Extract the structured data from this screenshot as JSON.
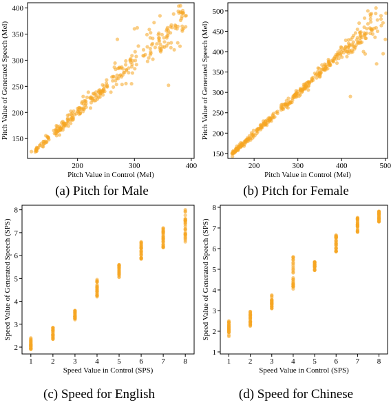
{
  "chart_data": [
    {
      "type": "scatter",
      "panel": "a",
      "caption": "(a) Pitch for Male",
      "xlabel": "Pitch Value in Control (Mel)",
      "ylabel": "Pitch Value of Generated Speech (Mel)",
      "xlim": [
        112,
        405
      ],
      "ylim": [
        112,
        410
      ],
      "xticks": [
        200,
        300,
        400
      ],
      "yticks": [
        150,
        200,
        250,
        300,
        350,
        400
      ],
      "color": "#f5a623",
      "seed": 11,
      "n_points": 300,
      "trend": {
        "x": [
          120,
          200,
          300,
          390
        ],
        "y": [
          122,
          202,
          300,
          385
        ]
      },
      "spread": {
        "x": [
          120,
          250,
          300,
          390
        ],
        "s": [
          3,
          8,
          14,
          25
        ]
      },
      "outliers": [
        [
          300,
          360
        ],
        [
          305,
          362
        ],
        [
          270,
          340
        ],
        [
          295,
          255
        ],
        [
          360,
          252
        ],
        [
          345,
          385
        ],
        [
          375,
          360
        ],
        [
          385,
          395
        ],
        [
          370,
          320
        ]
      ]
    },
    {
      "type": "scatter",
      "panel": "b",
      "caption": "(b) Pitch for Female",
      "xlabel": "Pitch Value in Control (Mel)",
      "ylabel": "Pitch Value of Generated Speech (Mel)",
      "xlim": [
        140,
        505
      ],
      "ylim": [
        138,
        520
      ],
      "xticks": [
        200,
        300,
        400,
        500
      ],
      "yticks": [
        150,
        200,
        250,
        300,
        350,
        400,
        450,
        500
      ],
      "color": "#f5a623",
      "seed": 23,
      "n_points": 380,
      "trend": {
        "x": [
          150,
          300,
          400,
          500
        ],
        "y": [
          150,
          297,
          398,
          478
        ]
      },
      "spread": {
        "x": [
          150,
          380,
          430,
          500
        ],
        "s": [
          3,
          6,
          14,
          24
        ]
      },
      "outliers": [
        [
          420,
          290
        ],
        [
          460,
          500
        ],
        [
          490,
          480
        ],
        [
          500,
          430
        ],
        [
          495,
          395
        ],
        [
          450,
          400
        ],
        [
          480,
          370
        ],
        [
          440,
          470
        ]
      ]
    },
    {
      "type": "scatter",
      "panel": "c",
      "caption": "(c) Speed for English",
      "xlabel": "Speed Value in Control (SPS)",
      "ylabel": "Speed Value of Generated Speech (SPS)",
      "xlim": [
        0.6,
        8.4
      ],
      "ylim": [
        1.7,
        8.2
      ],
      "xticks": [
        1,
        2,
        3,
        4,
        5,
        6,
        7,
        8
      ],
      "yticks": [
        2,
        3,
        4,
        5,
        6,
        7,
        8
      ],
      "color": "#f5a623",
      "seed": 37,
      "groups": [
        {
          "x": 1,
          "min": 1.9,
          "max": 2.4,
          "count": 24
        },
        {
          "x": 2,
          "min": 2.35,
          "max": 2.85,
          "count": 24
        },
        {
          "x": 3,
          "min": 3.2,
          "max": 3.6,
          "count": 24
        },
        {
          "x": 4,
          "min": 4.2,
          "max": 4.95,
          "count": 26
        },
        {
          "x": 5,
          "min": 5.05,
          "max": 5.6,
          "count": 26
        },
        {
          "x": 6,
          "min": 5.85,
          "max": 6.6,
          "count": 28
        },
        {
          "x": 7,
          "min": 6.35,
          "max": 7.2,
          "count": 28
        },
        {
          "x": 8,
          "min": 6.6,
          "max": 8.0,
          "count": 28
        }
      ]
    },
    {
      "type": "scatter",
      "panel": "d",
      "caption": "(d) Speed for Chinese",
      "xlabel": "Speed Value in Control (SPS)",
      "ylabel": "Speed Value of Generated Speech (SPS)",
      "xlim": [
        0.6,
        8.4
      ],
      "ylim": [
        0.9,
        8.1
      ],
      "xticks": [
        1,
        2,
        3,
        4,
        5,
        6,
        7,
        8
      ],
      "yticks": [
        1,
        2,
        3,
        4,
        5,
        6,
        7,
        8
      ],
      "color": "#f5a623",
      "seed": 51,
      "groups": [
        {
          "x": 1,
          "min": 1.75,
          "max": 2.5,
          "count": 24
        },
        {
          "x": 2,
          "min": 2.25,
          "max": 2.95,
          "count": 24
        },
        {
          "x": 3,
          "min": 3.1,
          "max": 3.75,
          "count": 24
        },
        {
          "x": 4,
          "min": 4.05,
          "max": 5.6,
          "count": 26
        },
        {
          "x": 5,
          "min": 4.95,
          "max": 5.35,
          "count": 24
        },
        {
          "x": 6,
          "min": 5.85,
          "max": 6.65,
          "count": 28
        },
        {
          "x": 7,
          "min": 6.8,
          "max": 7.5,
          "count": 28
        },
        {
          "x": 8,
          "min": 7.3,
          "max": 7.8,
          "count": 26
        }
      ]
    }
  ]
}
